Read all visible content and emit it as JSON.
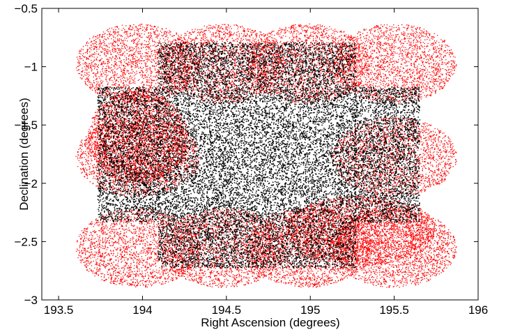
{
  "chart_data": {
    "type": "scatter",
    "title": "",
    "xlabel": "Right Ascension (degrees)",
    "ylabel": "Declination (degrees)",
    "xlim": [
      193.4,
      196.0
    ],
    "ylim": [
      -3.0,
      -0.5
    ],
    "y_direction": "reversed",
    "x_ticks": [
      193.5,
      194,
      194.5,
      195,
      195.5,
      196
    ],
    "x_tick_labels": [
      "193.5",
      "194",
      "194.5",
      "195",
      "195.5",
      "196"
    ],
    "y_ticks": [
      -0.5,
      -1,
      -1.5,
      -2,
      -2.5,
      -3
    ],
    "y_tick_labels": [
      "−0.5",
      "−1",
      "−1.5",
      "−2",
      "−2.5",
      "−3"
    ],
    "grid": false,
    "legend": "none",
    "colors": {
      "red_series": "#ff0000",
      "black_series": "#000000"
    },
    "series": [
      {
        "marker": "dot",
        "color": "#ff0000",
        "description_regions": {
          "circles": [
            {
              "center": [
                193.97,
                -0.97
              ],
              "radius": 0.37
            },
            {
              "center": [
                194.48,
                -0.97
              ],
              "radius": 0.37
            },
            {
              "center": [
                194.98,
                -0.97
              ],
              "radius": 0.37
            },
            {
              "center": [
                195.5,
                -0.97
              ],
              "radius": 0.37
            },
            {
              "center": [
                193.97,
                -1.77
              ],
              "radius": 0.37
            },
            {
              "center": [
                195.5,
                -1.77
              ],
              "radius": 0.37
            },
            {
              "center": [
                193.97,
                -2.55
              ],
              "radius": 0.37
            },
            {
              "center": [
                194.48,
                -2.55
              ],
              "radius": 0.37
            },
            {
              "center": [
                194.98,
                -2.55
              ],
              "radius": 0.37
            },
            {
              "center": [
                195.5,
                -2.55
              ],
              "radius": 0.37
            }
          ],
          "dense_ellipses": [
            {
              "center": [
                193.97,
                -1.6
              ],
              "rx": 0.3,
              "ry": 0.4
            },
            {
              "center": [
                195.3,
                -2.4
              ],
              "rx": 0.45,
              "ry": 0.3
            }
          ]
        },
        "n_points": 26000
      },
      {
        "marker": "dot",
        "color": "#000000",
        "description_regions": {
          "rectangles": [
            {
              "x": [
                194.09,
                195.27
              ],
              "y": [
                -0.79,
                -2.72
              ]
            },
            {
              "x": [
                193.73,
                194.1
              ],
              "y": [
                -1.17,
                -2.33
              ]
            },
            {
              "x": [
                195.26,
                195.65
              ],
              "y": [
                -1.17,
                -2.33
              ]
            }
          ]
        },
        "n_points": 19000
      }
    ]
  }
}
